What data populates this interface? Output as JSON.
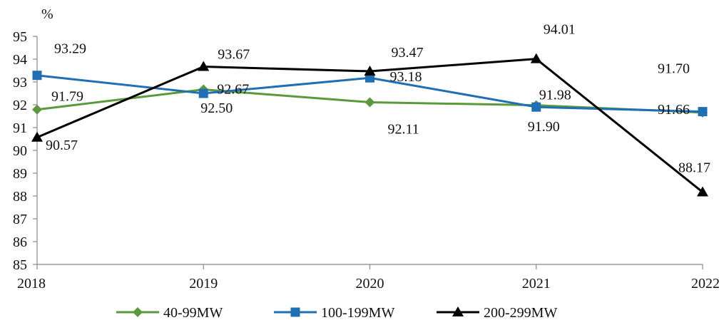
{
  "chart_data": {
    "type": "line",
    "title": "",
    "xlabel": "",
    "ylabel": "%",
    "x": [
      "2018",
      "2019",
      "2020",
      "2021",
      "2022"
    ],
    "ylim": [
      85,
      95
    ],
    "yticks": [
      85,
      86,
      87,
      88,
      89,
      90,
      91,
      92,
      93,
      94,
      95
    ],
    "grid": false,
    "legend": "bottom",
    "series": [
      {
        "name": "40-99MW",
        "color": "#5b9a3c",
        "marker": "diamond",
        "values": [
          91.79,
          92.67,
          92.11,
          91.98,
          91.66
        ],
        "labels": [
          "91.79",
          "92.67",
          "92.11",
          "91.98",
          "91.66"
        ]
      },
      {
        "name": "100-199MW",
        "color": "#1f6fb5",
        "marker": "square",
        "values": [
          93.29,
          92.5,
          93.18,
          91.9,
          91.7
        ],
        "labels": [
          "93.29",
          "92.50",
          "93.18",
          "91.90",
          "91.70"
        ]
      },
      {
        "name": "200-299MW",
        "color": "#000000",
        "marker": "triangle",
        "values": [
          90.57,
          93.67,
          93.47,
          94.01,
          88.17
        ],
        "labels": [
          "90.57",
          "93.67",
          "93.47",
          "94.01",
          "88.17"
        ]
      }
    ]
  }
}
